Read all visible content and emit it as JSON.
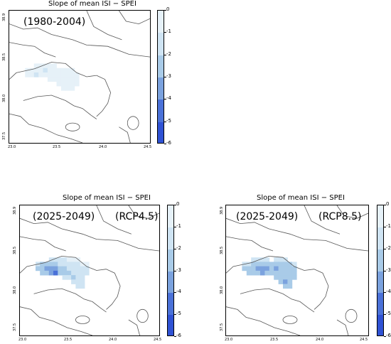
{
  "colormap": {
    "levels": [
      "0",
      "-1",
      "-2",
      "-3",
      "-4",
      "-5",
      "-6"
    ],
    "colors": [
      "#ffffff",
      "#e6f1f8",
      "#cfe4f3",
      "#a9cbe8",
      "#7ba2de",
      "#4a71d8",
      "#2f52d4"
    ]
  },
  "panels": [
    {
      "title": "Slope of mean  ISI − SPEI",
      "period": "(1980-2004)",
      "scenario": "",
      "x_ticks": [
        "23.0",
        "23.5",
        "24.0",
        "24.5"
      ],
      "y_ticks": [
        "38.9",
        "38.5",
        "38.0",
        "37.5"
      ],
      "cells": [
        [
          0,
          3,
          1
        ],
        [
          0,
          4,
          1
        ],
        [
          0,
          5,
          1
        ],
        [
          0,
          6,
          1
        ],
        [
          0,
          7,
          1
        ],
        [
          1,
          1,
          1
        ],
        [
          1,
          2,
          1
        ],
        [
          1,
          3,
          1
        ],
        [
          1,
          4,
          1
        ],
        [
          1,
          5,
          2
        ],
        [
          1,
          6,
          1
        ],
        [
          1,
          7,
          1
        ],
        [
          1,
          8,
          1
        ],
        [
          1,
          9,
          1
        ],
        [
          1,
          10,
          1
        ],
        [
          1,
          11,
          1
        ],
        [
          2,
          1,
          1
        ],
        [
          2,
          2,
          1
        ],
        [
          2,
          3,
          2
        ],
        [
          2,
          4,
          1
        ],
        [
          2,
          5,
          1
        ],
        [
          2,
          6,
          1
        ],
        [
          2,
          7,
          1
        ],
        [
          2,
          8,
          1
        ],
        [
          2,
          9,
          1
        ],
        [
          2,
          10,
          1
        ],
        [
          2,
          11,
          1
        ],
        [
          2,
          12,
          1
        ],
        [
          3,
          6,
          1
        ],
        [
          3,
          7,
          1
        ],
        [
          3,
          8,
          1
        ],
        [
          3,
          9,
          1
        ],
        [
          3,
          10,
          1
        ],
        [
          3,
          11,
          1
        ],
        [
          3,
          12,
          1
        ],
        [
          4,
          8,
          1
        ],
        [
          4,
          9,
          1
        ],
        [
          4,
          10,
          1
        ],
        [
          4,
          11,
          1
        ],
        [
          4,
          12,
          1
        ],
        [
          5,
          9,
          1
        ],
        [
          5,
          10,
          1
        ],
        [
          5,
          11,
          1
        ]
      ]
    },
    {
      "title": "Slope of mean  ISI − SPEI",
      "period": "(2025-2049)",
      "scenario": "(RCP4.5)",
      "x_ticks": [
        "23.0",
        "23.5",
        "24.0",
        "24.5"
      ],
      "y_ticks": [
        "38.9",
        "38.5",
        "38.0",
        "37.5"
      ],
      "cells": [
        [
          0,
          4,
          2
        ],
        [
          0,
          5,
          2
        ],
        [
          0,
          6,
          2
        ],
        [
          0,
          7,
          2
        ],
        [
          0,
          8,
          1
        ],
        [
          0,
          9,
          1
        ],
        [
          0,
          10,
          1
        ],
        [
          1,
          1,
          2
        ],
        [
          1,
          2,
          3
        ],
        [
          1,
          3,
          3
        ],
        [
          1,
          4,
          3
        ],
        [
          1,
          5,
          3
        ],
        [
          1,
          6,
          2
        ],
        [
          1,
          7,
          2
        ],
        [
          1,
          8,
          2
        ],
        [
          1,
          9,
          2
        ],
        [
          1,
          10,
          2
        ],
        [
          1,
          11,
          1
        ],
        [
          1,
          12,
          1
        ],
        [
          2,
          1,
          3
        ],
        [
          2,
          2,
          3
        ],
        [
          2,
          3,
          4
        ],
        [
          2,
          4,
          4
        ],
        [
          2,
          5,
          4
        ],
        [
          2,
          6,
          3
        ],
        [
          2,
          7,
          3
        ],
        [
          2,
          8,
          2
        ],
        [
          2,
          9,
          2
        ],
        [
          2,
          10,
          2
        ],
        [
          2,
          11,
          2
        ],
        [
          2,
          12,
          2
        ],
        [
          3,
          2,
          3
        ],
        [
          3,
          3,
          3
        ],
        [
          3,
          4,
          4
        ],
        [
          3,
          5,
          5
        ],
        [
          3,
          6,
          3
        ],
        [
          3,
          7,
          3
        ],
        [
          3,
          8,
          3
        ],
        [
          3,
          9,
          2
        ],
        [
          3,
          10,
          2
        ],
        [
          3,
          11,
          2
        ],
        [
          3,
          12,
          2
        ],
        [
          4,
          7,
          2
        ],
        [
          4,
          8,
          2
        ],
        [
          4,
          9,
          3
        ],
        [
          4,
          10,
          2
        ],
        [
          4,
          11,
          2
        ],
        [
          5,
          9,
          2
        ],
        [
          5,
          10,
          2
        ],
        [
          5,
          11,
          2
        ],
        [
          6,
          10,
          2
        ],
        [
          6,
          11,
          2
        ]
      ]
    },
    {
      "title": "Slope of mean  ISI − SPEI",
      "period": "(2025-2049)",
      "scenario": "(RCP8.5)",
      "x_ticks": [
        "23.0",
        "23.5",
        "24.0",
        "24.5"
      ],
      "y_ticks": [
        "38.9",
        "38.5",
        "38.0",
        "37.5"
      ],
      "cells": [
        [
          0,
          3,
          2
        ],
        [
          0,
          4,
          2
        ],
        [
          0,
          5,
          2
        ],
        [
          0,
          6,
          2
        ],
        [
          0,
          8,
          2
        ],
        [
          0,
          9,
          2
        ],
        [
          0,
          10,
          2
        ],
        [
          1,
          1,
          2
        ],
        [
          1,
          2,
          2
        ],
        [
          1,
          3,
          3
        ],
        [
          1,
          4,
          3
        ],
        [
          1,
          5,
          3
        ],
        [
          1,
          6,
          3
        ],
        [
          1,
          7,
          3
        ],
        [
          1,
          8,
          3
        ],
        [
          1,
          9,
          3
        ],
        [
          1,
          10,
          3
        ],
        [
          1,
          11,
          3
        ],
        [
          1,
          12,
          2
        ],
        [
          2,
          1,
          3
        ],
        [
          2,
          2,
          3
        ],
        [
          2,
          3,
          3
        ],
        [
          2,
          4,
          4
        ],
        [
          2,
          5,
          4
        ],
        [
          2,
          6,
          4
        ],
        [
          2,
          7,
          3
        ],
        [
          2,
          8,
          4
        ],
        [
          2,
          9,
          3
        ],
        [
          2,
          10,
          3
        ],
        [
          2,
          11,
          3
        ],
        [
          2,
          12,
          3
        ],
        [
          3,
          2,
          3
        ],
        [
          3,
          3,
          3
        ],
        [
          3,
          4,
          3
        ],
        [
          3,
          5,
          4
        ],
        [
          3,
          6,
          3
        ],
        [
          3,
          7,
          3
        ],
        [
          3,
          8,
          3
        ],
        [
          3,
          9,
          3
        ],
        [
          3,
          10,
          3
        ],
        [
          3,
          11,
          3
        ],
        [
          3,
          12,
          3
        ],
        [
          4,
          8,
          3
        ],
        [
          4,
          9,
          3
        ],
        [
          4,
          10,
          3
        ],
        [
          4,
          11,
          3
        ],
        [
          4,
          12,
          3
        ],
        [
          5,
          9,
          3
        ],
        [
          5,
          10,
          4
        ],
        [
          5,
          11,
          3
        ],
        [
          6,
          10,
          3
        ],
        [
          6,
          11,
          3
        ]
      ]
    }
  ]
}
